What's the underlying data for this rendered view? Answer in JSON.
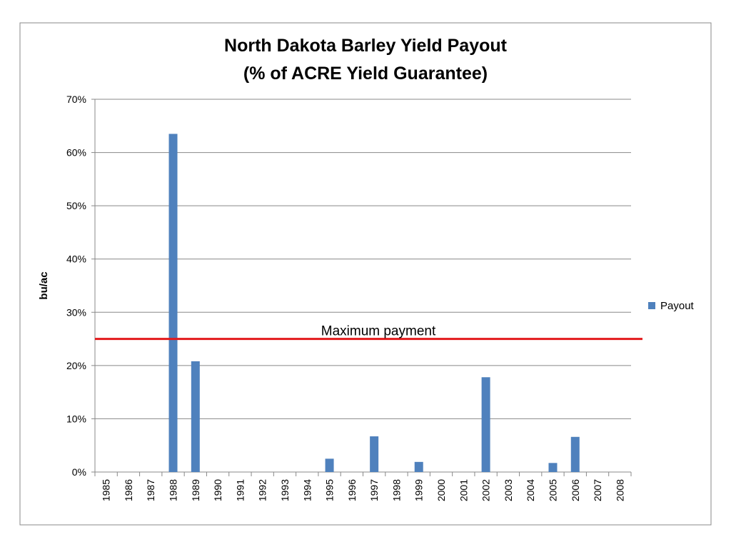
{
  "chart_data": {
    "type": "bar",
    "title": "North Dakota Barley Yield Payout",
    "subtitle": "(% of ACRE Yield Guarantee)",
    "y_label": "bu/ac",
    "categories": [
      "1985",
      "1986",
      "1987",
      "1988",
      "1989",
      "1990",
      "1991",
      "1992",
      "1993",
      "1994",
      "1995",
      "1996",
      "1997",
      "1998",
      "1999",
      "2000",
      "2001",
      "2002",
      "2003",
      "2004",
      "2005",
      "2006",
      "2007",
      "2008"
    ],
    "series": [
      {
        "name": "Payout",
        "color": "#4f81bd",
        "values": [
          0,
          0,
          0,
          63.5,
          20.8,
          0,
          0,
          0,
          0,
          0,
          2.5,
          0,
          6.7,
          0,
          1.9,
          0,
          0,
          17.8,
          0,
          0,
          1.7,
          6.6,
          0,
          0
        ]
      }
    ],
    "ylim": [
      0,
      70
    ],
    "yticks": [
      {
        "value": 0,
        "label": "0%"
      },
      {
        "value": 10,
        "label": "10%"
      },
      {
        "value": 20,
        "label": "20%"
      },
      {
        "value": 30,
        "label": "30%"
      },
      {
        "value": 40,
        "label": "40%"
      },
      {
        "value": 50,
        "label": "50%"
      },
      {
        "value": 60,
        "label": "60%"
      },
      {
        "value": 70,
        "label": "70%"
      }
    ],
    "grid": true,
    "legend": "right",
    "reference_line": {
      "value": 25,
      "label": "Maximum payment",
      "color": "#e31a1c"
    }
  }
}
